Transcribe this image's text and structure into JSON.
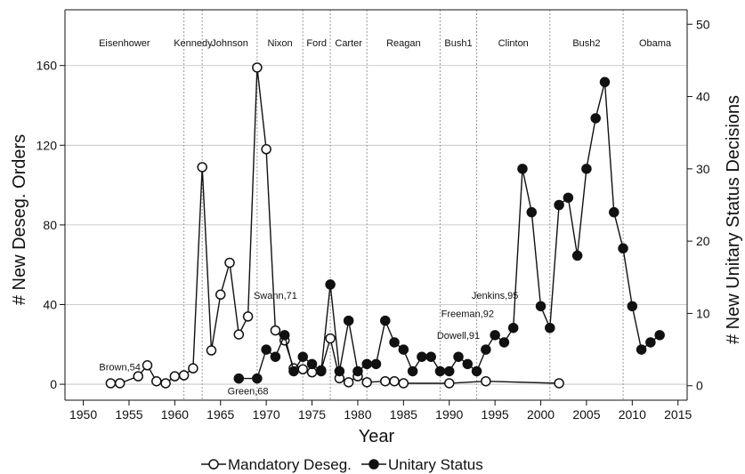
{
  "chart_data": {
    "type": "line",
    "xlabel": "Year",
    "ylabel_left": "# New Deseg. Orders",
    "ylabel_right": "# New Unitary Status Decisions",
    "xlim": [
      1948,
      2016
    ],
    "ylim_left": [
      -8,
      188
    ],
    "ylim_right": [
      -2,
      52
    ],
    "x_ticks": [
      1950,
      1955,
      1960,
      1965,
      1970,
      1975,
      1980,
      1985,
      1990,
      1995,
      2000,
      2005,
      2010,
      2015
    ],
    "y_ticks_left": [
      0,
      40,
      80,
      120,
      160
    ],
    "y_ticks_right": [
      0,
      10,
      20,
      30,
      40,
      50
    ],
    "grid_horizontal": true,
    "legend_position": "bottom",
    "eras": [
      {
        "label": "Eisenhower",
        "start": 1948,
        "end": 1961
      },
      {
        "label": "Kennedy",
        "start": 1961,
        "end": 1963
      },
      {
        "label": "Johnson",
        "start": 1963,
        "end": 1969
      },
      {
        "label": "Nixon",
        "start": 1969,
        "end": 1974
      },
      {
        "label": "Ford",
        "start": 1974,
        "end": 1977
      },
      {
        "label": "Carter",
        "start": 1977,
        "end": 1981
      },
      {
        "label": "Reagan",
        "start": 1981,
        "end": 1989
      },
      {
        "label": "Bush1",
        "start": 1989,
        "end": 1993
      },
      {
        "label": "Clinton",
        "start": 1993,
        "end": 2001
      },
      {
        "label": "Bush2",
        "start": 2001,
        "end": 2009
      },
      {
        "label": "Obama",
        "start": 2009,
        "end": 2016
      }
    ],
    "era_boundaries": [
      1961,
      1963,
      1969,
      1974,
      1977,
      1981,
      1989,
      1993,
      2001,
      2009
    ],
    "series": [
      {
        "name": "Mandatory Deseg.",
        "axis": "left",
        "marker": "hollow-circle",
        "x": [
          1953,
          1954,
          1956,
          1957,
          1958,
          1959,
          1960,
          1961,
          1962,
          1963,
          1964,
          1965,
          1966,
          1967,
          1968,
          1969,
          1970,
          1971,
          1972,
          1973,
          1974,
          1975,
          1976,
          1977,
          1978,
          1979,
          1980,
          1981,
          1983,
          1984,
          1985,
          1990,
          1994,
          2002
        ],
        "y": [
          0.5,
          0.5,
          4,
          9.5,
          1.5,
          0.5,
          4,
          4.5,
          8,
          109,
          17,
          45,
          61,
          25,
          34,
          159,
          118,
          27,
          22,
          8,
          7.5,
          6,
          7,
          23,
          3,
          1,
          4,
          1,
          1.5,
          1.5,
          0.5,
          0.5,
          1.5,
          0.5
        ]
      },
      {
        "name": "Unitary Status",
        "axis": "right",
        "marker": "filled-circle",
        "x": [
          1967,
          1969,
          1970,
          1971,
          1972,
          1973,
          1974,
          1975,
          1976,
          1977,
          1978,
          1979,
          1980,
          1981,
          1982,
          1983,
          1984,
          1985,
          1986,
          1987,
          1988,
          1989,
          1990,
          1991,
          1992,
          1993,
          1994,
          1995,
          1996,
          1997,
          1998,
          1999,
          2000,
          2001,
          2002,
          2003,
          2004,
          2005,
          2006,
          2007,
          2008,
          2009,
          2010,
          2011,
          2012,
          2013
        ],
        "y": [
          1,
          1,
          5,
          4,
          7,
          2,
          4,
          3,
          2,
          14,
          2,
          9,
          2,
          3,
          3,
          9,
          6,
          5,
          2,
          4,
          4,
          2,
          2,
          4,
          3,
          2,
          5,
          7,
          6,
          8,
          30,
          24,
          11,
          8,
          25,
          26,
          18,
          30,
          37,
          42,
          24,
          19,
          11,
          5,
          6,
          7
        ]
      }
    ],
    "annotations": [
      {
        "text": "Brown,54",
        "x": 1954,
        "y": 7,
        "axis": "left"
      },
      {
        "text": "Green,68",
        "x": 1968,
        "y": -5,
        "axis": "left"
      },
      {
        "text": "Swann,71",
        "x": 1971,
        "y": 43,
        "axis": "left"
      },
      {
        "text": "Jenkins,95",
        "x": 1995,
        "y": 12,
        "axis": "right"
      },
      {
        "text": "Freeman,92",
        "x": 1992,
        "y": 9.5,
        "axis": "right"
      },
      {
        "text": "Dowell,91",
        "x": 1991,
        "y": 6.5,
        "axis": "right"
      }
    ]
  }
}
